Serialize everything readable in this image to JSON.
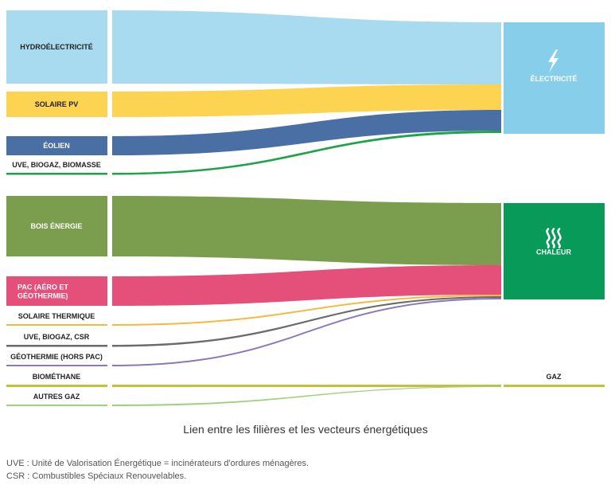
{
  "sources": [
    {
      "id": "hydro",
      "label": "HYDROÉLECTRICITÉ",
      "color": "#a8daf0",
      "kind": "box",
      "text_color": "#222"
    },
    {
      "id": "pv",
      "label": "SOLAIRE PV",
      "color": "#fdd352",
      "kind": "box",
      "text_color": "#222"
    },
    {
      "id": "eolien",
      "label": "ÉOLIEN",
      "color": "#4a6fa5",
      "kind": "box",
      "text_color": "#fff"
    },
    {
      "id": "uve_bio",
      "label": "UVE, BIOGAZ, BIOMASSE",
      "color": "#1fa34a",
      "kind": "line",
      "text_color": "#222"
    },
    {
      "id": "bois",
      "label": "BOIS ÉNERGIE",
      "color": "#7a9e4e",
      "kind": "box",
      "text_color": "#fff"
    },
    {
      "id": "pac",
      "label": "PAC (AÉRO ET GÉOTHERMIE)",
      "color": "#e4507a",
      "kind": "box",
      "text_color": "#fff"
    },
    {
      "id": "sol_th",
      "label": "SOLAIRE THERMIQUE",
      "color": "#f4b942",
      "kind": "line",
      "text_color": "#222"
    },
    {
      "id": "uve_csr",
      "label": "UVE, BIOGAZ, CSR",
      "color": "#6b6b6b",
      "kind": "line",
      "text_color": "#222"
    },
    {
      "id": "geo",
      "label": "GÉOTHERMIE (HORS PAC)",
      "color": "#8a78b8",
      "kind": "line",
      "text_color": "#222"
    },
    {
      "id": "biomethane",
      "label": "BIOMÉTHANE",
      "color": "#c2c23a",
      "kind": "line",
      "text_color": "#222"
    },
    {
      "id": "autres_gaz",
      "label": "AUTRES GAZ",
      "color": "#9fd07a",
      "kind": "line",
      "text_color": "#222"
    }
  ],
  "targets": [
    {
      "id": "elec",
      "label": "ÉLECTRICITÉ",
      "icon": "lightning-icon",
      "color": "#87ceeb"
    },
    {
      "id": "chaleur",
      "label": "CHALEUR",
      "icon": "heat-waves-icon",
      "color": "#079a59"
    },
    {
      "id": "gaz",
      "label": "GAZ",
      "icon": "",
      "color": "#c2c23a"
    }
  ],
  "links": [
    {
      "source": "hydro",
      "target": "elec"
    },
    {
      "source": "pv",
      "target": "elec"
    },
    {
      "source": "eolien",
      "target": "elec"
    },
    {
      "source": "uve_bio",
      "target": "elec"
    },
    {
      "source": "bois",
      "target": "chaleur"
    },
    {
      "source": "pac",
      "target": "chaleur"
    },
    {
      "source": "sol_th",
      "target": "chaleur"
    },
    {
      "source": "uve_csr",
      "target": "chaleur"
    },
    {
      "source": "geo",
      "target": "chaleur"
    },
    {
      "source": "biomethane",
      "target": "gaz"
    },
    {
      "source": "autres_gaz",
      "target": "gaz"
    }
  ],
  "caption": "Lien entre les filières et les vecteurs énergétiques",
  "notes": [
    "UVE : Unité de Valorisation Énergétique = incinérateurs d'ordures ménagères.",
    "CSR : Combustibles Spéciaux Renouvelables."
  ]
}
